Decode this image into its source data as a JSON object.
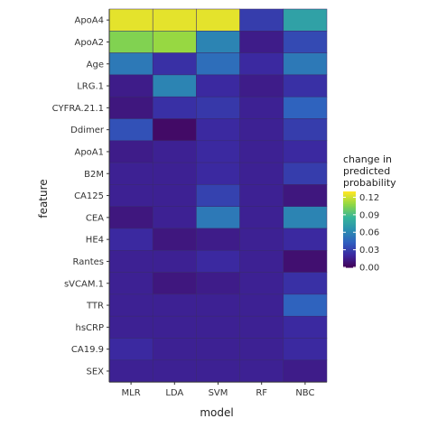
{
  "chart_data": {
    "type": "heatmap",
    "xlabel": "model",
    "ylabel": "feature",
    "x": [
      "MLR",
      "LDA",
      "SVM",
      "RF",
      "NBC"
    ],
    "y": [
      "ApoA4",
      "ApoA2",
      "Age",
      "LRG.1",
      "CYFRA.21.1",
      "Ddimer",
      "ApoA1",
      "B2M",
      "CA125",
      "CEA",
      "HE4",
      "Rantes",
      "sVCAM.1",
      "TTR",
      "hsCRP",
      "CA19.9",
      "SEX"
    ],
    "values": [
      [
        0.125,
        0.125,
        0.125,
        0.03,
        0.075
      ],
      [
        0.105,
        0.11,
        0.06,
        0.015,
        0.035
      ],
      [
        0.055,
        0.025,
        0.05,
        0.022,
        0.055
      ],
      [
        0.015,
        0.06,
        0.022,
        0.015,
        0.025
      ],
      [
        0.012,
        0.025,
        0.028,
        0.018,
        0.045
      ],
      [
        0.038,
        0.005,
        0.022,
        0.018,
        0.03
      ],
      [
        0.015,
        0.018,
        0.022,
        0.018,
        0.022
      ],
      [
        0.018,
        0.018,
        0.022,
        0.018,
        0.03
      ],
      [
        0.018,
        0.018,
        0.032,
        0.018,
        0.012
      ],
      [
        0.012,
        0.018,
        0.055,
        0.018,
        0.06
      ],
      [
        0.022,
        0.012,
        0.015,
        0.018,
        0.022
      ],
      [
        0.018,
        0.018,
        0.022,
        0.018,
        0.008
      ],
      [
        0.018,
        0.012,
        0.015,
        0.018,
        0.025
      ],
      [
        0.018,
        0.018,
        0.018,
        0.018,
        0.045
      ],
      [
        0.018,
        0.018,
        0.018,
        0.018,
        0.022
      ],
      [
        0.022,
        0.018,
        0.018,
        0.018,
        0.022
      ],
      [
        0.018,
        0.018,
        0.018,
        0.018,
        0.015
      ]
    ],
    "legend": {
      "title": [
        "change in",
        "predicted",
        "probability"
      ],
      "ticks": [
        "0.12",
        "0.09",
        "0.06",
        "0.03",
        "0.00"
      ],
      "tick_values": [
        0.12,
        0.09,
        0.06,
        0.03,
        0.0
      ],
      "range": [
        0,
        0.13
      ],
      "placement": "right"
    },
    "colorscale": [
      "#440154",
      "#3b28a0",
      "#2f5fbf",
      "#2b8fb0",
      "#36b69a",
      "#8fd744",
      "#fde725"
    ]
  }
}
